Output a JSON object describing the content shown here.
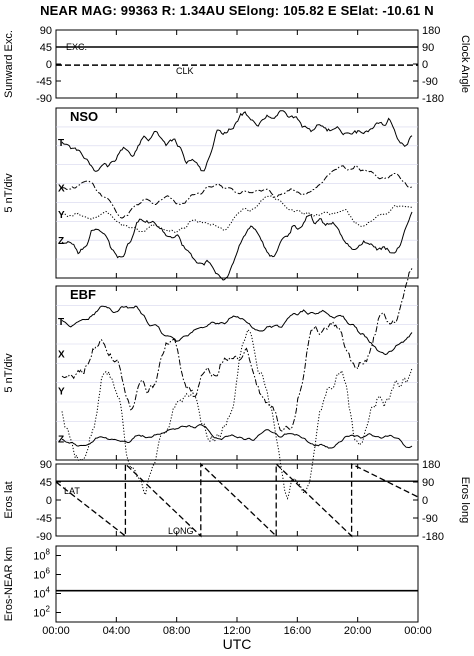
{
  "title": "NEAR MAG: 99363  R: 1.34AU  SElong: 105.82 E  SElat: -10.61 N",
  "x_axis": {
    "title": "UTC",
    "tick_labels": [
      "00:00",
      "04:00",
      "08:00",
      "12:00",
      "16:00",
      "20:00",
      "00:00"
    ]
  },
  "chart_data": [
    {
      "type": "line",
      "ylabel": "Sunward Exc.",
      "ylabel_right": "Clock Angle",
      "yticks_left": [
        "90",
        "45",
        "0",
        "-45",
        "-90"
      ],
      "yticks_right": [
        "180",
        "90",
        "0",
        "-90",
        "-180"
      ],
      "ylim": [
        -90,
        90
      ],
      "series": [
        {
          "name": "EXC.",
          "style": "solid",
          "x_hours": [
            0,
            24
          ],
          "y": [
            45,
            45
          ]
        },
        {
          "name": "CLK",
          "style": "dashed",
          "x_hours": [
            0,
            24
          ],
          "y": [
            -3,
            -3
          ]
        }
      ]
    },
    {
      "type": "line",
      "title": "NSO",
      "ylabel": "5 nT/div",
      "series": [
        {
          "name": "T",
          "style": "solid",
          "baseline_div": 7.2,
          "wiggle_div": 0.7
        },
        {
          "name": "X",
          "style": "dash-dot",
          "baseline_div": 4.8,
          "wiggle_div": 0.4
        },
        {
          "name": "Y",
          "style": "dotted",
          "baseline_div": 3.4,
          "wiggle_div": 0.4
        },
        {
          "name": "Z",
          "style": "solid",
          "baseline_div": 2.0,
          "wiggle_div": 0.7
        }
      ]
    },
    {
      "type": "line",
      "title": "EBF",
      "ylabel": "5 nT/div",
      "series": [
        {
          "name": "T",
          "style": "solid",
          "baseline_div": 7.2,
          "wiggle_div": 0.4
        },
        {
          "name": "X",
          "style": "dash-dot",
          "baseline_div": 5.5,
          "wiggle_div": 1.2
        },
        {
          "name": "Y",
          "style": "dotted",
          "baseline_div": 3.6,
          "wiggle_div": 1.3
        },
        {
          "name": "Z",
          "style": "solid",
          "baseline_div": 1.1,
          "wiggle_div": 0.3
        }
      ]
    },
    {
      "type": "line",
      "ylabel": "Eros lat",
      "ylabel_right": "Eros long",
      "yticks_left": [
        "90",
        "45",
        "0",
        "-45",
        "-90"
      ],
      "yticks_right": [
        "180",
        "90",
        "0",
        "-90",
        "-180"
      ],
      "ylim": [
        -90,
        90
      ],
      "series": [
        {
          "name": "LAT",
          "style": "solid",
          "x_hours": [
            0,
            24
          ],
          "y": [
            47,
            47
          ]
        },
        {
          "name": "LONG",
          "style": "dashed",
          "x_hours": [
            0,
            4.6,
            4.6,
            9.6,
            9.6,
            14.6,
            14.6,
            19.6,
            19.6,
            24
          ],
          "y_long": [
            90,
            -180,
            180,
            -180,
            180,
            -180,
            180,
            -180,
            180,
            15
          ]
        }
      ]
    },
    {
      "type": "line",
      "ylabel": "Eros-NEAR km",
      "yscale": "log",
      "yticks_left": [
        "10^8",
        "10^6",
        "10^4",
        "10^2"
      ],
      "series": [
        {
          "name": "Eros-NEAR distance",
          "style": "solid",
          "x_hours": [
            0,
            24
          ],
          "y": [
            20000,
            20000
          ]
        }
      ]
    }
  ]
}
